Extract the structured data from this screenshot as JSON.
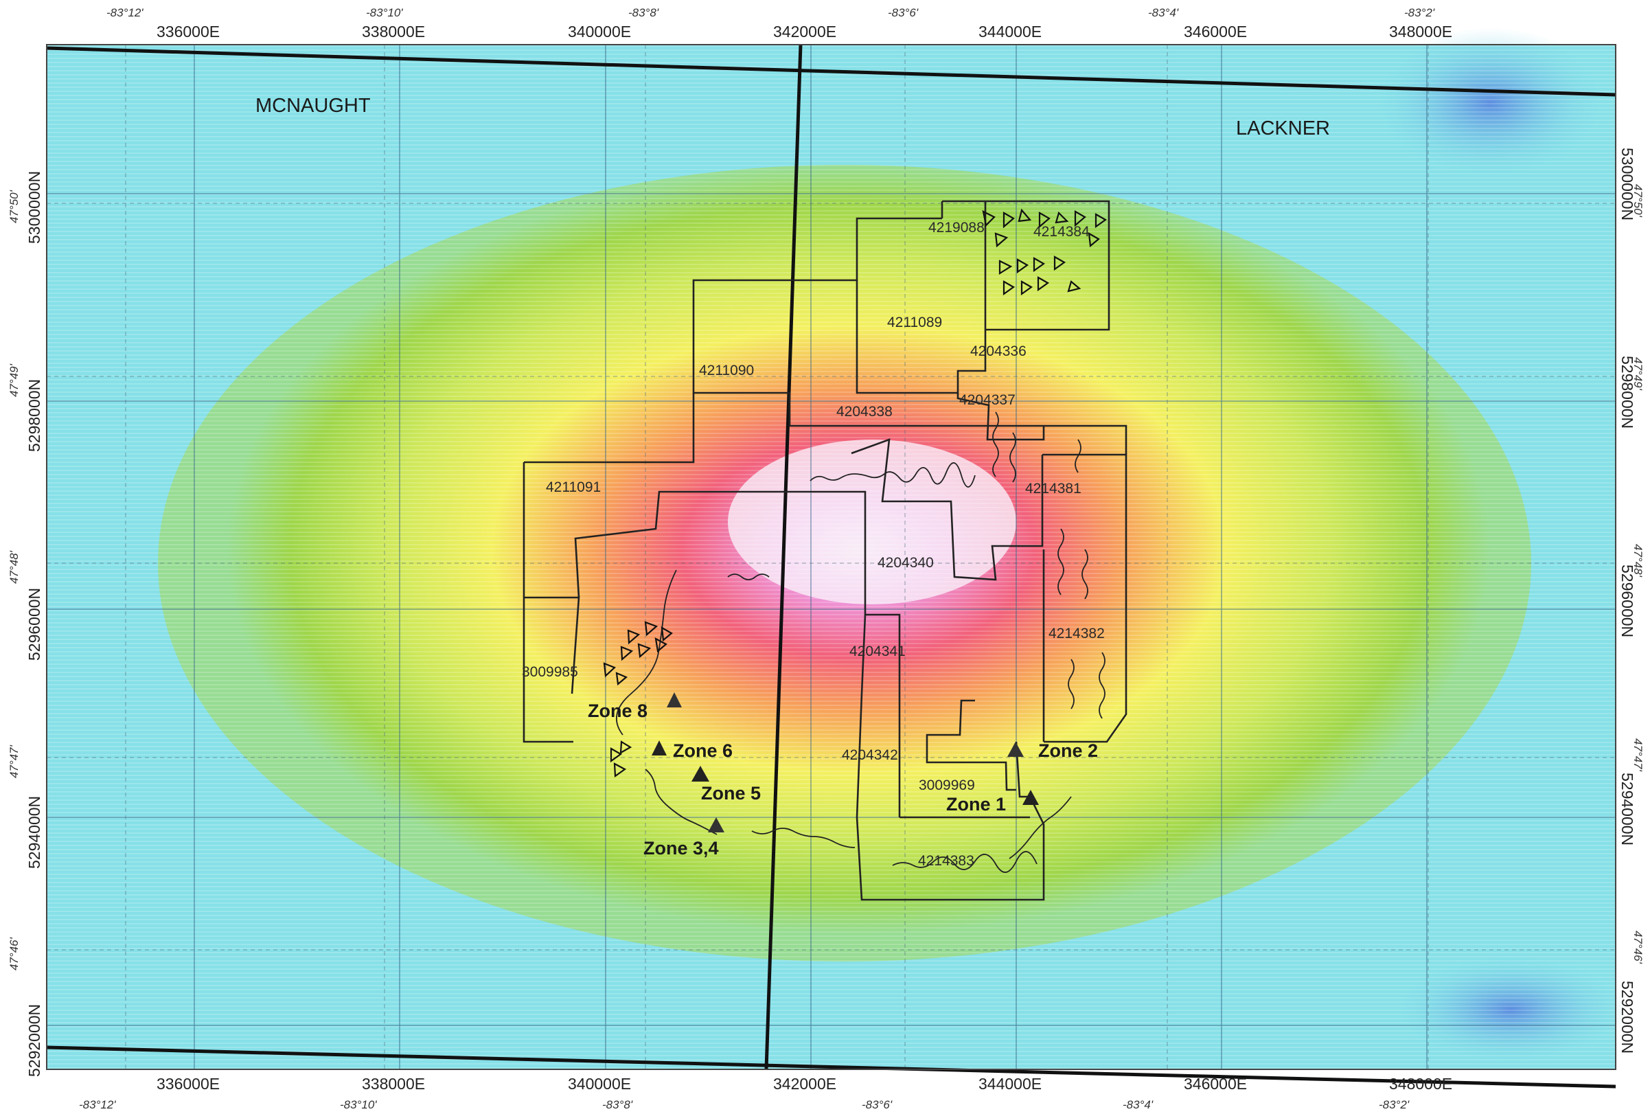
{
  "map": {
    "townships": [
      "MCNAUGHT",
      "LACKNER"
    ],
    "easting_labels": [
      "336000E",
      "338000E",
      "340000E",
      "342000E",
      "344000E",
      "346000E",
      "348000E"
    ],
    "northing_labels": [
      "5300000N",
      "5298000N",
      "5296000N",
      "5294000N",
      "5292000N"
    ],
    "longitude_labels": [
      "-83°12'",
      "-83°10'",
      "-83°8'",
      "-83°6'",
      "-83°4'",
      "-83°2'"
    ],
    "latitude_labels": [
      "47°50'",
      "47°49'",
      "47°48'",
      "47°47'",
      "47°46'"
    ],
    "claims": [
      "4219088",
      "4214384",
      "4211089",
      "4204336",
      "4211090",
      "4204337",
      "4204338",
      "4211091",
      "4214381",
      "4204340",
      "4214382",
      "3009985",
      "4204341",
      "4204342",
      "3009969",
      "4214383"
    ],
    "zones": [
      "Zone 8",
      "Zone 6",
      "Zone 5",
      "Zone 3,4",
      "Zone 2",
      "Zone 1"
    ],
    "colors": {
      "background_low": "#7fe0e6",
      "low_blue": "#5c9be0",
      "green": "#9ed64a",
      "yellow": "#f4f060",
      "orange": "#f7a25a",
      "red": "#f25a5a",
      "magenta": "#e58ae0",
      "core": "#f6e8f4"
    }
  }
}
